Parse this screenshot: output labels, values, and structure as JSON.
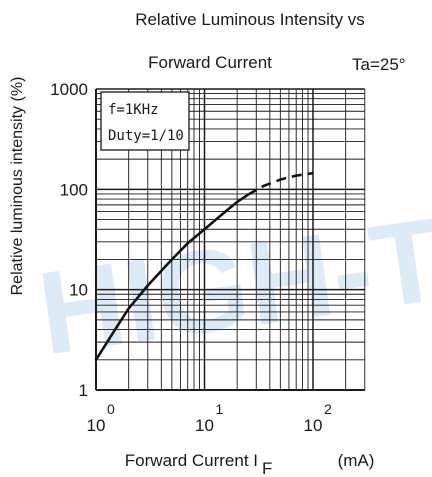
{
  "chart_data": {
    "type": "line",
    "title_line1": "Relative Luminous Intensity vs",
    "title_line2": "Forward Current",
    "condition": "Ta=25°",
    "ylabel": "Relative luminous intensity  (%)",
    "xlabel_prefix": "Forward Current  I",
    "xlabel_sub": "F",
    "xlabel_unit": "(mA)",
    "x_scale": "log",
    "y_scale": "log",
    "xlim": [
      1,
      300
    ],
    "ylim": [
      1,
      1000
    ],
    "x_ticks": [
      {
        "value": 1,
        "base": "10",
        "exp": "0"
      },
      {
        "value": 10,
        "base": "10",
        "exp": "1"
      },
      {
        "value": 100,
        "base": "10",
        "exp": "2"
      }
    ],
    "y_ticks": [
      {
        "value": 1,
        "label": "1"
      },
      {
        "value": 10,
        "label": "10"
      },
      {
        "value": 100,
        "label": "100"
      },
      {
        "value": 1000,
        "label": "1000"
      }
    ],
    "legend_box": {
      "line1": "f=1KHz",
      "line2": "Duty=1/10",
      "position": "top-left"
    },
    "grid": true,
    "watermark": "HIGH-T",
    "series": [
      {
        "style": "solid",
        "points": [
          [
            1,
            2
          ],
          [
            1.5,
            4
          ],
          [
            2,
            6.5
          ],
          [
            3,
            11
          ],
          [
            5,
            20
          ],
          [
            7,
            29
          ],
          [
            10,
            40
          ],
          [
            15,
            58
          ],
          [
            20,
            75
          ],
          [
            25,
            88
          ]
        ]
      },
      {
        "style": "dashed",
        "points": [
          [
            25,
            88
          ],
          [
            35,
            108
          ],
          [
            50,
            125
          ],
          [
            70,
            137
          ],
          [
            100,
            145
          ]
        ]
      }
    ]
  }
}
